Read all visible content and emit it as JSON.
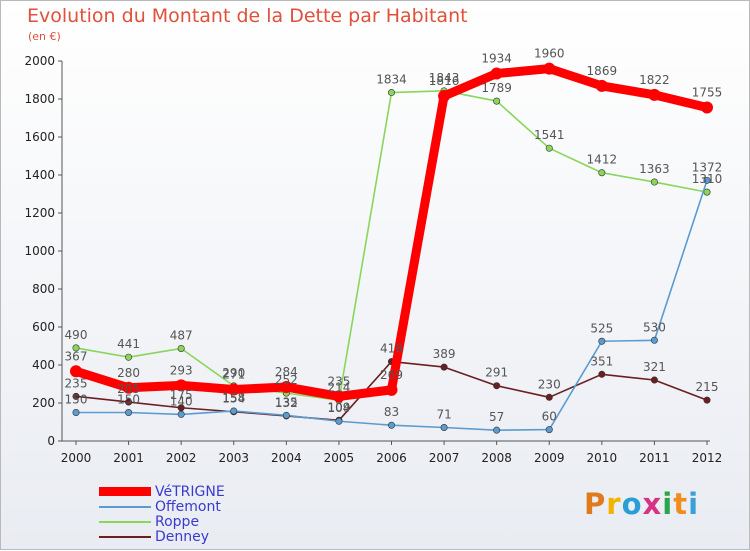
{
  "header": {
    "title": "Evolution du Montant de la Dette par Habitant",
    "unit": "(en €)"
  },
  "logo": {
    "text": "Proxiti",
    "colors": [
      "#e07a1b",
      "#f2b400",
      "#2a9fd6",
      "#d63384",
      "#2aa64a",
      "#f28c1c",
      "#3aa0d8"
    ]
  },
  "chart_data": {
    "type": "line",
    "x": [
      "2000",
      "2001",
      "2002",
      "2003",
      "2004",
      "2005",
      "2006",
      "2007",
      "2008",
      "2009",
      "2010",
      "2011",
      "2012"
    ],
    "ylim": [
      0,
      2000
    ],
    "yticks": [
      0,
      200,
      400,
      600,
      800,
      1000,
      1200,
      1400,
      1600,
      1800,
      2000
    ],
    "grid": false,
    "legend_position": "bottom-left",
    "series": [
      {
        "name": "Denney",
        "color": "#6b1f22",
        "values": [
          235,
          205,
          175,
          154,
          132,
          109,
          418,
          389,
          291,
          230,
          351,
          321,
          215
        ]
      },
      {
        "name": "Roppe",
        "color": "#8ad65a",
        "values": [
          490,
          441,
          487,
          290,
          252,
          214,
          1834,
          1843,
          1789,
          1541,
          1412,
          1363,
          1310
        ]
      },
      {
        "name": "Offemont",
        "color": "#5b9bd0",
        "values": [
          150,
          150,
          140,
          158,
          135,
          104,
          83,
          71,
          57,
          60,
          525,
          530,
          1372
        ]
      },
      {
        "name": "VéTRIGNE",
        "color": "#ff0000",
        "values": [
          367,
          280,
          293,
          271,
          284,
          235,
          269,
          1816,
          1934,
          1960,
          1869,
          1822,
          1755
        ]
      }
    ],
    "legend": [
      "VéTRIGNE",
      "Offemont",
      "Roppe",
      "Denney"
    ]
  }
}
